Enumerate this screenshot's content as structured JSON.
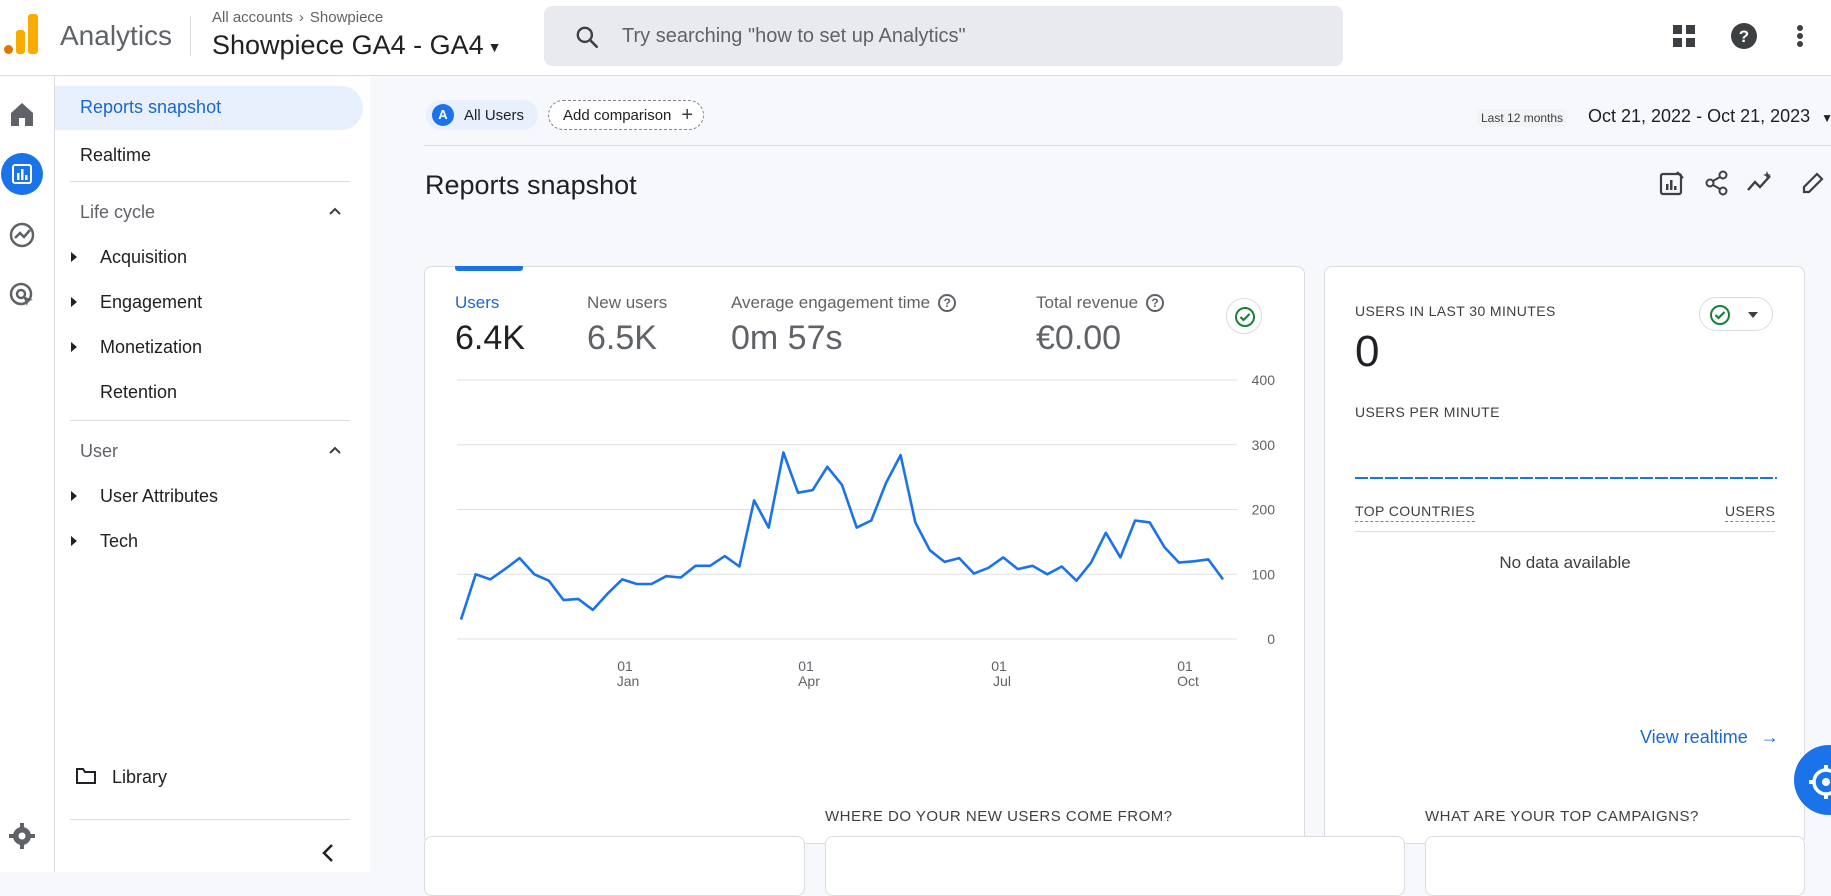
{
  "header": {
    "app_name": "Analytics",
    "breadcrumb_account": "All accounts",
    "breadcrumb_sub": "Showpiece",
    "property_name": "Showpiece GA4 - GA4",
    "search_placeholder": "Try searching \"how to set up Analytics\""
  },
  "nav": {
    "active_item": "Reports snapshot",
    "realtime": "Realtime",
    "lifecycle_label": "Life cycle",
    "lifecycle_items": [
      "Acquisition",
      "Engagement",
      "Monetization",
      "Retention"
    ],
    "user_label": "User",
    "user_items": [
      "User Attributes",
      "Tech"
    ],
    "library": "Library"
  },
  "toolbar": {
    "segment_badge": "A",
    "segment_label": "All Users",
    "add_comparison": "Add comparison",
    "date_label": "Last 12 months",
    "date_range": "Oct 21, 2022 - Oct 21, 2023"
  },
  "page": {
    "title": "Reports snapshot"
  },
  "metrics": [
    {
      "label": "Users",
      "value": "6.4K"
    },
    {
      "label": "New users",
      "value": "6.5K"
    },
    {
      "label": "Average engagement time",
      "value": "0m 57s"
    },
    {
      "label": "Total revenue",
      "value": "€0.00"
    }
  ],
  "chart_data": {
    "type": "line",
    "series": [
      {
        "name": "Users",
        "x_index": [
          0,
          1,
          2,
          3,
          4,
          5,
          6,
          7,
          8,
          9,
          10,
          11,
          12,
          13,
          14,
          15,
          16,
          17,
          18,
          19,
          20,
          21,
          22,
          23,
          24,
          25,
          26,
          27,
          28,
          29,
          30,
          31,
          32,
          33,
          34,
          35,
          36,
          37,
          38,
          39,
          40,
          41,
          42,
          43,
          44,
          45,
          46,
          47,
          48,
          49,
          50,
          51,
          52
        ],
        "values": [
          30,
          100,
          92,
          108,
          125,
          100,
          90,
          60,
          62,
          45,
          70,
          92,
          85,
          85,
          97,
          95,
          113,
          113,
          128,
          112,
          214,
          172,
          288,
          226,
          230,
          266,
          238,
          172,
          183,
          241,
          284,
          180,
          137,
          119,
          125,
          101,
          110,
          126,
          108,
          113,
          100,
          112,
          90,
          118,
          164,
          126,
          183,
          180,
          142,
          118,
          120,
          123,
          92
        ]
      }
    ],
    "x_ticks": [
      {
        "day": "01",
        "month": "Jan"
      },
      {
        "day": "01",
        "month": "Apr"
      },
      {
        "day": "01",
        "month": "Jul"
      },
      {
        "day": "01",
        "month": "Oct"
      }
    ],
    "y_ticks": [
      "400",
      "300",
      "200",
      "100",
      "0"
    ],
    "ylim": [
      0,
      400
    ],
    "grid": true,
    "color": "#1a73e8"
  },
  "realtime": {
    "title": "USERS IN LAST 30 MINUTES",
    "count": "0",
    "per_minute": "USERS PER MINUTE",
    "top_countries": "TOP COUNTRIES",
    "users_col": "USERS",
    "no_data": "No data available",
    "view_link": "View realtime"
  },
  "sections": {
    "new_users": "WHERE DO YOUR NEW USERS COME FROM?",
    "campaigns": "WHAT ARE YOUR TOP CAMPAIGNS?"
  },
  "colors": {
    "accent": "#1a73e8",
    "logo_orange": "#f9ab00",
    "logo_dark": "#e37400",
    "success": "#188038"
  }
}
